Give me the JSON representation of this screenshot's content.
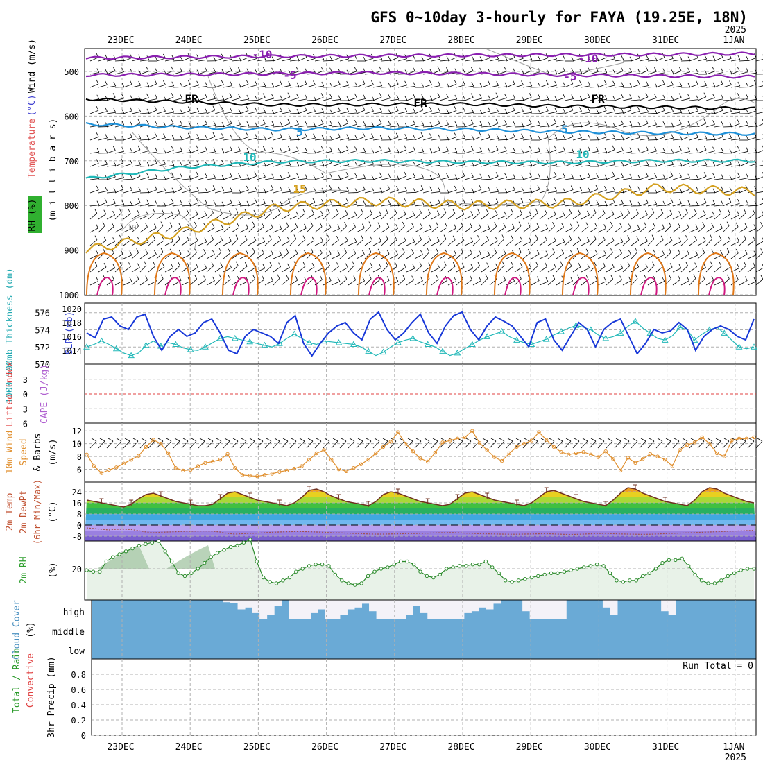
{
  "title": "GFS 0~10day 3-hourly for FAYA (19.25E, 18N)",
  "run_total": "Run Total = 0",
  "date_labels": [
    "23DEC",
    "24DEC",
    "25DEC",
    "26DEC",
    "27DEC",
    "28DEC",
    "29DEC",
    "30DEC",
    "31DEC",
    "1JAN"
  ],
  "year_label": "2025",
  "colors": {
    "temp_minus10": "#8a1fb0",
    "temp_minus5": "#8a1fb0",
    "temp_frz": "#000000",
    "temp_5": "#1e90d8",
    "temp_10": "#20b8b8",
    "temp_15": "#d4a020",
    "rh_contour": "#a0a0a0",
    "wind_barb": "#000000",
    "slp": "#1838d8",
    "thickness": "#20b8b8",
    "wind10m": "#e09030",
    "rh2m_line": "#2a8a2a",
    "rh2m_fill": "#e8f2e8",
    "cloud": "#6aaad6",
    "cloud_clear": "#f4f2f8",
    "lifted_zero": "#e04040"
  },
  "chart_data": [
    {
      "panel": "upper-air",
      "type": "contour",
      "ylabel_parts": [
        {
          "text": "RH (%)",
          "color": "#000000"
        },
        {
          "text": "Temperature",
          "color": "#e05050"
        },
        {
          "text": " (°C)",
          "color": "#4040d0"
        },
        {
          "text": "Wind (m/s)",
          "color": "#000000"
        }
      ],
      "ylabel2": "(m i l l i b a r s)",
      "yticks": [
        500,
        600,
        700,
        800,
        900,
        1000
      ],
      "ylim": [
        1000,
        450
      ],
      "contour_labels": [
        {
          "text": "-10",
          "level": -10
        },
        {
          "text": "-5",
          "level": -5
        },
        {
          "text": "FR",
          "level": 0
        },
        {
          "text": "5",
          "level": 5
        },
        {
          "text": "10",
          "level": 10
        },
        {
          "text": "15",
          "level": 15
        },
        {
          "text": "10",
          "level": "rh"
        }
      ],
      "isotherms": [
        {
          "level": -10,
          "pressure": [
            470,
            468,
            466,
            465,
            464,
            463,
            462,
            460
          ]
        },
        {
          "level": -5,
          "pressure": [
            508,
            507,
            505,
            503,
            505,
            508,
            510,
            512
          ]
        },
        {
          "level": 0,
          "pressure": [
            562,
            568,
            575,
            574,
            573,
            578,
            580,
            583
          ]
        },
        {
          "level": 5,
          "pressure": [
            618,
            625,
            630,
            627,
            630,
            635,
            638,
            640
          ]
        },
        {
          "level": 10,
          "pressure": [
            740,
            715,
            702,
            700,
            703,
            704,
            700,
            700
          ]
        },
        {
          "level": 15,
          "pressure": [
            900,
            860,
            805,
            790,
            800,
            795,
            760,
            770
          ]
        }
      ]
    },
    {
      "panel": "slp-thickness",
      "type": "line",
      "ylabel_left": "1000-500mb Thickness (dm)",
      "ylabel_right": "SLP (mb)",
      "yticks_left": [
        570,
        572,
        574,
        576
      ],
      "yticks_right": [
        1014,
        1016,
        1018,
        1020
      ],
      "series": [
        {
          "name": "SLP",
          "axis": "right",
          "values": [
            1016.5,
            1015.8,
            1018.5,
            1018.8,
            1017.5,
            1017,
            1018.8,
            1019.2,
            1016,
            1014,
            1016,
            1017,
            1016,
            1016.5,
            1018,
            1018.5,
            1016.5,
            1014,
            1013.5,
            1016,
            1017,
            1016.5,
            1016,
            1015,
            1018,
            1019,
            1015,
            1013.2,
            1015,
            1016.5,
            1017.5,
            1018,
            1016.5,
            1015.5,
            1018.5,
            1019.5,
            1017,
            1015.5,
            1016.5,
            1018,
            1019.2,
            1016.5,
            1015,
            1017.5,
            1019,
            1019.5,
            1017,
            1015.5,
            1017.5,
            1018.8,
            1018.2,
            1017.5,
            1016,
            1014.5,
            1018,
            1018.5,
            1015.5,
            1014,
            1016,
            1018,
            1017,
            1014.5,
            1017,
            1018,
            1018.5,
            1016,
            1013.5,
            1015,
            1017,
            1016.5,
            1016.8,
            1018,
            1017,
            1014,
            1016,
            1017,
            1017.5,
            1017,
            1016,
            1015.5,
            1018.5
          ]
        },
        {
          "name": "Thickness",
          "axis": "left",
          "values": [
            572,
            572.3,
            572.7,
            572.3,
            571.8,
            571.3,
            571.0,
            571.3,
            572.2,
            572.7,
            572.1,
            572.5,
            572.3,
            571.9,
            571.7,
            571.6,
            572.0,
            572.5,
            573.0,
            573.2,
            573.0,
            572.8,
            572.6,
            572.4,
            572.2,
            572.0,
            572.4,
            573.0,
            573.5,
            573.0,
            572.5,
            572.3,
            572.7,
            572.6,
            572.5,
            572.4,
            572.3,
            572.0,
            571.5,
            571.0,
            571.4,
            572.0,
            572.5,
            572.8,
            573.0,
            572.6,
            572.3,
            572.0,
            571.5,
            571.0,
            571.3,
            571.8,
            572.3,
            572.8,
            573.2,
            573.5,
            573.8,
            573.2,
            572.8,
            572.5,
            572.3,
            572.6,
            572.9,
            573.4,
            573.8,
            574.2,
            574.5,
            574.3,
            574.0,
            573.4,
            573.0,
            573.2,
            573.6,
            574.4,
            575.0,
            574.2,
            573.6,
            573.0,
            572.8,
            573.3,
            574.3,
            574.0,
            572.8,
            573.5,
            574.0,
            574.3,
            573.6,
            572.8,
            572.0,
            571.8,
            572.0
          ]
        }
      ]
    },
    {
      "panel": "cape-lifted-index",
      "type": "line",
      "ylabel_left": "Lifted Index",
      "ylabel_right": "CAPE (J/kg)",
      "yticks": [
        -3,
        0,
        3,
        6
      ],
      "ylim": [
        -6,
        6
      ],
      "series": []
    },
    {
      "panel": "wind-10m",
      "type": "line",
      "ylabel": "10m Wind Speed (m/s) & Barbs",
      "yticks": [
        6,
        8,
        10,
        12
      ],
      "ylim": [
        4,
        13
      ],
      "series": [
        {
          "name": "10m Wind Speed",
          "values": [
            8.3,
            6.5,
            5.4,
            5.9,
            6.3,
            6.9,
            7.5,
            8.1,
            9.5,
            10.6,
            10.0,
            8.5,
            6.2,
            5.8,
            5.9,
            6.5,
            7.0,
            7.2,
            7.5,
            8.4,
            6.2,
            5.1,
            5.0,
            4.9,
            5.1,
            5.3,
            5.6,
            5.8,
            6.1,
            6.5,
            7.5,
            8.5,
            9.0,
            7.5,
            6.0,
            5.7,
            6.2,
            6.8,
            7.5,
            8.5,
            9.5,
            10.3,
            11.8,
            10.0,
            8.8,
            7.7,
            7.2,
            8.6,
            10.2,
            10.5,
            10.8,
            11.0,
            12.0,
            10.1,
            9.0,
            7.9,
            7.3,
            8.5,
            9.5,
            10.0,
            10.5,
            11.8,
            10.6,
            9.5,
            8.7,
            8.3,
            8.5,
            8.7,
            8.3,
            7.9,
            8.8,
            7.6,
            5.8,
            7.8,
            7.0,
            7.6,
            8.4,
            8.0,
            7.5,
            6.5,
            9.0,
            9.8,
            10.2,
            11.0,
            10.0,
            8.5,
            8.0,
            10.5,
            10.8,
            10.8,
            11.0
          ]
        }
      ]
    },
    {
      "panel": "temperature-2m",
      "type": "area",
      "ylabel": "2m Temp 2m DewPt (6hr Min/Max) (°C)",
      "yticks": [
        -8,
        0,
        8,
        16,
        24
      ],
      "ylim": [
        -12,
        30
      ],
      "series": [
        {
          "name": "2m Temp",
          "values": [
            18,
            17,
            16,
            15,
            14,
            13,
            15,
            19,
            22,
            23,
            21,
            19,
            17,
            16,
            15,
            14,
            14,
            15,
            19,
            23,
            24,
            22,
            20,
            18,
            17,
            16,
            15,
            14,
            16,
            20,
            25,
            26,
            24,
            21,
            19,
            17,
            16,
            15,
            14,
            17,
            22,
            24,
            23,
            21,
            19,
            17,
            16,
            15,
            14,
            15,
            19,
            23,
            24,
            22,
            20,
            18,
            17,
            16,
            15,
            14,
            16,
            20,
            24,
            25,
            23,
            21,
            19,
            17,
            16,
            15,
            14,
            18,
            23,
            27,
            26,
            23,
            21,
            19,
            17,
            16,
            15,
            14,
            18,
            24,
            27,
            26,
            23,
            21,
            19,
            17,
            16
          ]
        },
        {
          "name": "2m DewPt",
          "values": [
            -2,
            -2.5,
            -3,
            -3.5,
            -3,
            -3,
            -3.2,
            -4,
            -5,
            -5.5,
            -5.2,
            -5,
            -4.8,
            -4.6,
            -4.5,
            -4.4,
            -4.3,
            -4.5,
            -5,
            -6,
            -6.5,
            -6.2,
            -6,
            -5.8,
            -5.5,
            -5.2,
            -5,
            -4.8,
            -4.7,
            -4.7,
            -4.8,
            -5,
            -5.2,
            -5.5,
            -5.6,
            -5.8,
            -6,
            -6.2,
            -6.4,
            -6.5,
            -6.5,
            -6.4,
            -6.3,
            -6.2,
            -6.1,
            -6,
            -5.8,
            -5.6,
            -5.5,
            -5.4,
            -5.5,
            -5.8,
            -6,
            -6.2,
            -6.3,
            -6.4,
            -6.5,
            -6.6,
            -6.6,
            -6.5,
            -6.4,
            -6.3,
            -6.2,
            -6.4,
            -6.6,
            -6.8,
            -6.7,
            -6.5,
            -6.3,
            -6.1,
            -6,
            -6.2,
            -6.4,
            -6.5,
            -6.6,
            -6.7,
            -6.6,
            -6.4,
            -6.2,
            -6,
            -5.8,
            -5.6,
            -5.4,
            -5.2,
            -5,
            -4.8,
            -4.6,
            -4.4,
            -4.2,
            -4,
            -3.8
          ]
        }
      ]
    },
    {
      "panel": "rh-2m",
      "type": "area",
      "ylabel": "2m RH (%)",
      "yticks": [
        20
      ],
      "ylim": [
        0,
        42
      ],
      "series": [
        {
          "name": "2m RH",
          "values": [
            19,
            18,
            18,
            25,
            28,
            30,
            32,
            34,
            36,
            37,
            38,
            39,
            32,
            25,
            17,
            15,
            17,
            20,
            24,
            28,
            31,
            33,
            35,
            36,
            38,
            40,
            25,
            14,
            11,
            10,
            12,
            14,
            18,
            20,
            22,
            23,
            23,
            22,
            16,
            12,
            10,
            9,
            10,
            15,
            18,
            20,
            21,
            23,
            25,
            25,
            23,
            18,
            15,
            14,
            16,
            20,
            21,
            22,
            22,
            23,
            23,
            25,
            21,
            17,
            12,
            11,
            12,
            13,
            14,
            15,
            16,
            17,
            17,
            18,
            19,
            20,
            21,
            22,
            23,
            22,
            17,
            12,
            11,
            12,
            12,
            15,
            17,
            20,
            24,
            26,
            26,
            27,
            22,
            16,
            12,
            10,
            10,
            12,
            15,
            17,
            19,
            20,
            20
          ]
        }
      ]
    },
    {
      "panel": "cloud-cover",
      "type": "area",
      "ylabel": "Cloud Cover (%)",
      "levels": [
        "high",
        "middle",
        "low"
      ],
      "series": [
        {
          "name": "high",
          "values": [
            100,
            100,
            100,
            100,
            100,
            100,
            100,
            100,
            100,
            100,
            100,
            100,
            100,
            100,
            100,
            100,
            100,
            100,
            88,
            85,
            50,
            60,
            30,
            0,
            20,
            70,
            100,
            0,
            0,
            0,
            30,
            50,
            0,
            0,
            20,
            50,
            60,
            80,
            40,
            0,
            0,
            0,
            0,
            20,
            70,
            30,
            0,
            0,
            0,
            0,
            0,
            30,
            40,
            60,
            50,
            80,
            100,
            100,
            100,
            40,
            0,
            0,
            0,
            0,
            0,
            100,
            100,
            100,
            100,
            100,
            60,
            20,
            100,
            100,
            100,
            100,
            100,
            100,
            40,
            20,
            100,
            100,
            100,
            100,
            100,
            100,
            100,
            100,
            100,
            100,
            100
          ]
        }
      ]
    },
    {
      "panel": "precip-3hr",
      "type": "bar",
      "ylabel": "3hr Precip (mm)",
      "ylabel_parts": [
        {
          "text": "Total / Rain",
          "color": "#2a9a2a"
        },
        {
          "text": "Convective",
          "color": "#e04040"
        }
      ],
      "yticks": [
        0,
        0.2,
        0.4,
        0.6,
        0.8
      ],
      "ylim": [
        0,
        0.9
      ],
      "series": []
    }
  ]
}
